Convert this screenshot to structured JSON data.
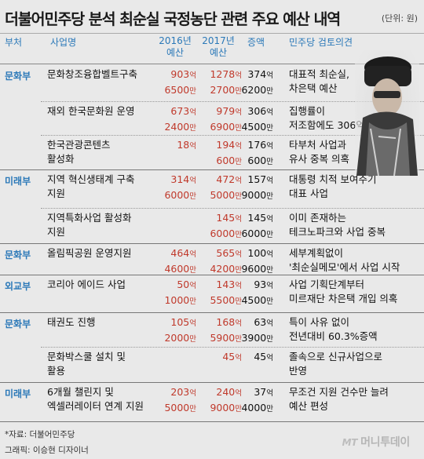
{
  "title": "더불어민주당 분석 최순실 국정농단 관련 주요 예산 내역",
  "unit": "(단위: 원)",
  "headers": {
    "dept": "부처",
    "project": "사업명",
    "y2016": [
      "2016년",
      "예산"
    ],
    "y2017": [
      "2017년",
      "예산"
    ],
    "increase": "증액",
    "review": "민주당 검토의견"
  },
  "suffix": {
    "eok": "억",
    "man": "만"
  },
  "rows": [
    {
      "dept": "문화부",
      "project": [
        "문화창조융합벨트구축"
      ],
      "v2016": [
        "903",
        "6500"
      ],
      "v2017": [
        "1278",
        "2700"
      ],
      "inc": [
        "374",
        "6200"
      ],
      "review": [
        "대표적 최순실,",
        "차은택 예산"
      ]
    },
    {
      "dept": "",
      "project": [
        "재외 한국문화원 운영"
      ],
      "v2016": [
        "673",
        "2400"
      ],
      "v2017": [
        "979",
        "6900"
      ],
      "inc": [
        "306",
        "4500"
      ],
      "review": [
        "집행률이",
        "저조함에도 306억원 증액"
      ]
    },
    {
      "dept": "",
      "project": [
        "한국관광콘텐츠",
        "활성화"
      ],
      "v2016": [
        "18",
        ""
      ],
      "v2017": [
        "194",
        "600"
      ],
      "inc": [
        "176",
        "600"
      ],
      "review": [
        "타부처 사업과",
        "유사 중복 의혹"
      ]
    },
    {
      "dept": "미래부",
      "project": [
        "지역 혁신생태계 구축",
        "지원"
      ],
      "v2016": [
        "314",
        "6000"
      ],
      "v2017": [
        "472",
        "5000"
      ],
      "inc": [
        "157",
        "9000"
      ],
      "review": [
        "대통령 치적 보여주기",
        "대표 사업"
      ]
    },
    {
      "dept": "",
      "project": [
        "지역특화사업 활성화",
        "지원"
      ],
      "v2016": [
        "",
        ""
      ],
      "v2017": [
        "145",
        "6000"
      ],
      "inc": [
        "145",
        "6000"
      ],
      "review": [
        "이미 존재하는",
        "테크노파크와 사업 중복"
      ]
    },
    {
      "dept": "문화부",
      "project": [
        "올림픽공원 운영지원"
      ],
      "v2016": [
        "464",
        "4600"
      ],
      "v2017": [
        "565",
        "4200"
      ],
      "inc": [
        "100",
        "9600"
      ],
      "review": [
        "세부계획없이",
        "'최순실메모'에서 사업 시작"
      ]
    },
    {
      "dept": "외교부",
      "project": [
        "코리아 에이드 사업"
      ],
      "v2016": [
        "50",
        "1000"
      ],
      "v2017": [
        "143",
        "5500"
      ],
      "inc": [
        "93",
        "4500"
      ],
      "review": [
        "사업 기획단계부터",
        "미르재단 차은택 개입 의혹"
      ]
    },
    {
      "dept": "문화부",
      "project": [
        "태권도 진행"
      ],
      "v2016": [
        "105",
        "2000"
      ],
      "v2017": [
        "168",
        "5900"
      ],
      "inc": [
        "63",
        "3900"
      ],
      "review": [
        "특이 사유 없이",
        "전년대비 60.3%증액"
      ]
    },
    {
      "dept": "",
      "project": [
        "문화박스쿨 설치 및",
        "활용"
      ],
      "v2016": [
        "",
        ""
      ],
      "v2017": [
        "45",
        ""
      ],
      "inc": [
        "45",
        ""
      ],
      "review": [
        "졸속으로 신규사업으로",
        "반영"
      ]
    },
    {
      "dept": "미래부",
      "project": [
        "6개월 챌린지 및",
        "엑셀러레이터 연계 지원"
      ],
      "v2016": [
        "203",
        "5000"
      ],
      "v2017": [
        "240",
        "9000"
      ],
      "inc": [
        "37",
        "4000"
      ],
      "review": [
        "무조건 지원 건수만 늘려",
        "예산 편성"
      ]
    }
  ],
  "footer": {
    "source": "*자료: 더불어민주당",
    "graphic": "그래픽: 이승현 디자이너",
    "logo_mark": "MT",
    "logo_text": "머니투데이"
  }
}
